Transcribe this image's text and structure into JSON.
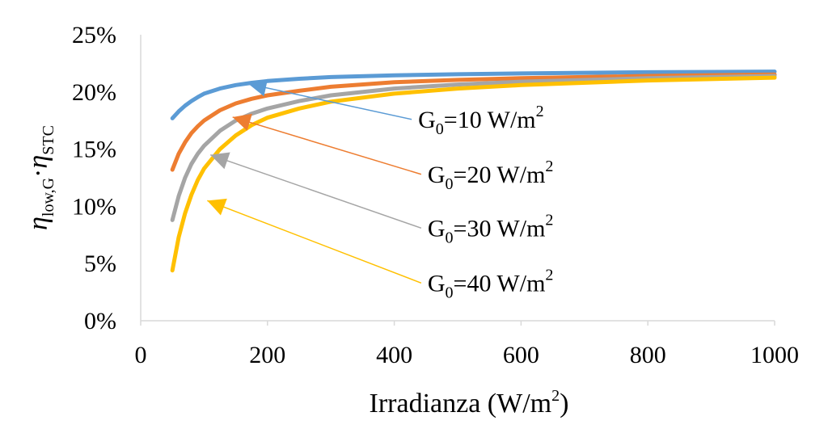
{
  "chart_data": {
    "type": "line",
    "xlabel": "Irradianza (W/m",
    "xlabel_sup": "2",
    "xlabel_end": ")",
    "ylabel_eta1": "η",
    "ylabel_sub1": "low,G",
    "ylabel_dot": "·",
    "ylabel_eta2": "η",
    "ylabel_sub2": "STC",
    "xlim": [
      0,
      1000
    ],
    "ylim": [
      0,
      25
    ],
    "x_ticks": [
      "0",
      "200",
      "400",
      "600",
      "800",
      "1000"
    ],
    "y_ticks": [
      "0%",
      "5%",
      "10%",
      "15%",
      "20%",
      "25%"
    ],
    "grid": false,
    "x": [
      50,
      60,
      70,
      80,
      90,
      100,
      125,
      150,
      175,
      200,
      250,
      300,
      400,
      500,
      600,
      800,
      1000
    ],
    "series": [
      {
        "name_prefix": "G",
        "name_sub": "0",
        "name_value": "=10 W/m",
        "name_sup": "2",
        "color": "#5B9BD5",
        "values": [
          17.7,
          18.3,
          18.8,
          19.2,
          19.55,
          19.85,
          20.3,
          20.6,
          20.8,
          20.95,
          21.15,
          21.3,
          21.45,
          21.55,
          21.62,
          21.72,
          21.78
        ],
        "marker_x": 170,
        "marker_y": 20.7,
        "label_x": 430,
        "label_y": 17.6
      },
      {
        "name_prefix": "G",
        "name_sub": "0",
        "name_value": "=20 W/m",
        "name_sup": "2",
        "color": "#ED7D31",
        "values": [
          13.2,
          14.6,
          15.6,
          16.4,
          17.0,
          17.5,
          18.4,
          19.0,
          19.4,
          19.7,
          20.1,
          20.45,
          20.85,
          21.05,
          21.2,
          21.4,
          21.52
        ],
        "marker_x": 145,
        "marker_y": 17.8,
        "label_x": 445,
        "label_y": 12.8
      },
      {
        "name_prefix": "G",
        "name_sub": "0",
        "name_value": "=30 W/m",
        "name_sup": "2",
        "color": "#A5A5A5",
        "values": [
          8.8,
          10.9,
          12.5,
          13.7,
          14.6,
          15.3,
          16.6,
          17.5,
          18.1,
          18.55,
          19.2,
          19.7,
          20.3,
          20.65,
          20.9,
          21.2,
          21.4
        ],
        "marker_x": 110,
        "marker_y": 14.5,
        "label_x": 445,
        "label_y": 8.1
      },
      {
        "name_prefix": "G",
        "name_sub": "0",
        "name_value": "=40 W/m",
        "name_sup": "2",
        "color": "#FFC000",
        "values": [
          4.4,
          7.3,
          9.4,
          11.0,
          12.3,
          13.3,
          15.0,
          16.2,
          17.1,
          17.75,
          18.55,
          19.15,
          19.85,
          20.3,
          20.6,
          21.0,
          21.25
        ],
        "marker_x": 105,
        "marker_y": 10.5,
        "label_x": 445,
        "label_y": 3.3
      }
    ]
  }
}
